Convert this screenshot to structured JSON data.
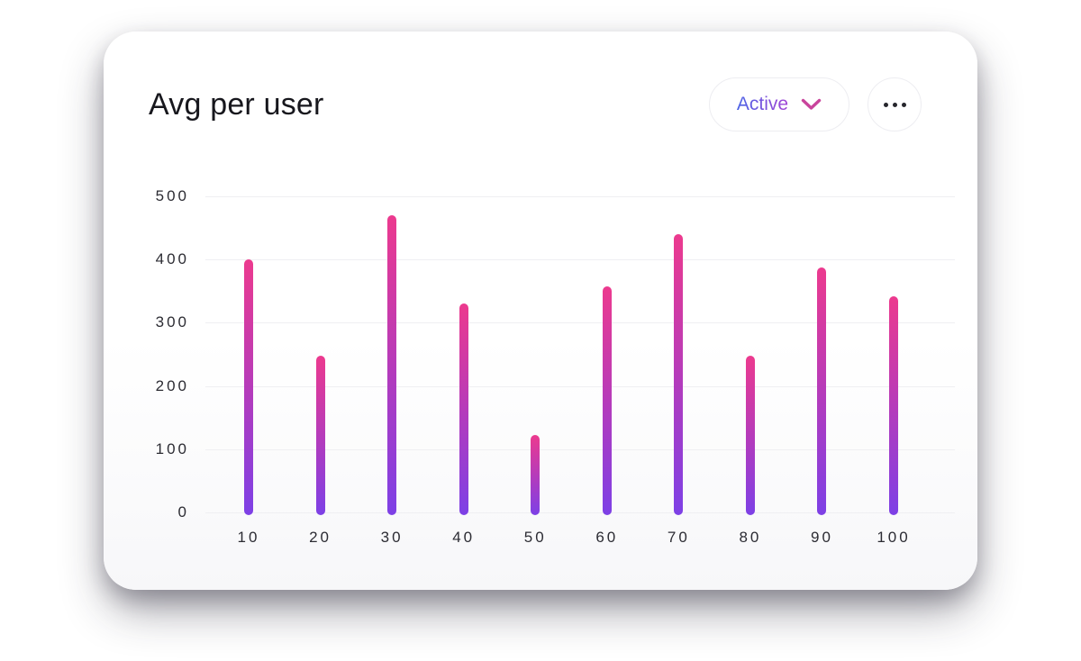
{
  "header": {
    "title": "Avg per user",
    "filter_button": {
      "label": "Active",
      "state": "collapsed"
    },
    "menu_button": {
      "icon": "ellipsis-icon"
    }
  },
  "colors": {
    "bar_gradient_top": "#ec3a8e",
    "bar_gradient_mid": "#b43bbc",
    "bar_gradient_bottom": "#7d40e6",
    "filter_text_gradient_from": "#4b63e6",
    "filter_text_gradient_to": "#a245d5",
    "chevron": "#c9449c",
    "gridline": "#efeff2",
    "axis_label": "#2c2c33",
    "title_text": "#17171d"
  },
  "chart_data": {
    "type": "bar",
    "title": "Avg per user",
    "categories": [
      "10",
      "20",
      "30",
      "40",
      "50",
      "60",
      "70",
      "80",
      "90",
      "100"
    ],
    "values": [
      400,
      248,
      470,
      330,
      122,
      358,
      440,
      248,
      387,
      342
    ],
    "xlabel": "",
    "ylabel": "",
    "ylim": [
      0,
      500
    ],
    "y_ticks": [
      0,
      100,
      200,
      300,
      400,
      500
    ],
    "grid": true,
    "legend": false,
    "bar_style": "thin-rounded-gradient"
  }
}
